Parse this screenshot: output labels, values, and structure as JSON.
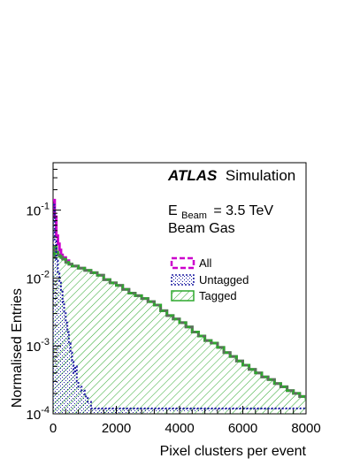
{
  "chart_data": {
    "type": "histogram",
    "xlabel": "Pixel clusters per event",
    "ylabel": "Normalised Entries",
    "xlim": [
      0,
      8000
    ],
    "ylim": [
      0.0001,
      0.5
    ],
    "yscale": "log",
    "x_ticks": [
      {
        "value": 0,
        "label": "0"
      },
      {
        "value": 2000,
        "label": "2000"
      },
      {
        "value": 4000,
        "label": "4000"
      },
      {
        "value": 6000,
        "label": "6000"
      },
      {
        "value": 8000,
        "label": "8000"
      }
    ],
    "y_ticks": [
      {
        "exp": -4,
        "base": "10",
        "sup": "-4"
      },
      {
        "exp": -3,
        "base": "10",
        "sup": "-3"
      },
      {
        "exp": -2,
        "base": "10",
        "sup": "-2"
      },
      {
        "exp": -1,
        "base": "10",
        "sup": "-1"
      }
    ],
    "annotations": {
      "brand": "ATLAS",
      "brand_suffix": "Simulation",
      "energy_prefix": "E",
      "energy_subscript": "Beam",
      "energy_value": "= 3.5 TeV",
      "sample": "Beam Gas"
    },
    "legend": {
      "placement": "right-middle",
      "entries": [
        {
          "label": "All",
          "color": "#cc00cc",
          "style": "dashed"
        },
        {
          "label": "Untagged",
          "color": "#1a1aa0",
          "style": "dotted-hatched"
        },
        {
          "label": "Tagged",
          "color": "#2ea82e",
          "style": "hatched"
        }
      ]
    },
    "series": [
      {
        "name": "All",
        "color": "#cc00cc",
        "x": [
          0,
          50,
          100,
          150,
          200,
          250,
          300,
          400,
          500,
          600,
          800,
          1000,
          1200,
          1400,
          1600,
          1800,
          2000,
          2200,
          2400,
          2600,
          2800,
          3000,
          3200,
          3400,
          3600,
          3800,
          4000,
          4200,
          4400,
          4600,
          4800,
          5000,
          5200,
          5400,
          5600,
          5800,
          6000,
          6200,
          6400,
          6600,
          6800,
          7000,
          7200,
          7400,
          7600,
          7800,
          8000
        ],
        "y": [
          0.14,
          0.08,
          0.042,
          0.032,
          0.026,
          0.022,
          0.02,
          0.018,
          0.016,
          0.015,
          0.014,
          0.013,
          0.012,
          0.011,
          0.0095,
          0.0085,
          0.0078,
          0.0068,
          0.006,
          0.0055,
          0.005,
          0.0045,
          0.004,
          0.0033,
          0.0028,
          0.0025,
          0.0022,
          0.0019,
          0.0016,
          0.0014,
          0.0012,
          0.0011,
          0.00095,
          0.0008,
          0.0007,
          0.0006,
          0.00052,
          0.00045,
          0.0004,
          0.00035,
          0.00032,
          0.00028,
          0.00025,
          0.00022,
          0.0002,
          0.00018,
          0.00016
        ]
      },
      {
        "name": "Untagged",
        "color": "#1a1aa0",
        "x": [
          0,
          50,
          100,
          150,
          200,
          250,
          300,
          350,
          400,
          450,
          500,
          550,
          600,
          650,
          700,
          750,
          800,
          900,
          1000,
          1100,
          1200
        ],
        "y": [
          0.12,
          0.035,
          0.018,
          0.012,
          0.009,
          0.0065,
          0.0045,
          0.0032,
          0.0022,
          0.0016,
          0.0011,
          0.0008,
          0.0006,
          0.0004,
          0.0005,
          0.0003,
          0.00025,
          0.00022,
          0.00018,
          0.00015,
          0.00012
        ]
      },
      {
        "name": "Tagged",
        "color": "#2ea82e",
        "x": [
          0,
          50,
          100,
          150,
          200,
          250,
          300,
          400,
          500,
          600,
          800,
          1000,
          1200,
          1400,
          1600,
          1800,
          2000,
          2200,
          2400,
          2600,
          2800,
          3000,
          3200,
          3400,
          3600,
          3800,
          4000,
          4200,
          4400,
          4600,
          4800,
          5000,
          5200,
          5400,
          5600,
          5800,
          6000,
          6200,
          6400,
          6600,
          6800,
          7000,
          7200,
          7400,
          7600,
          7800,
          8000
        ],
        "y": [
          0.02,
          0.028,
          0.024,
          0.022,
          0.021,
          0.02,
          0.019,
          0.017,
          0.016,
          0.015,
          0.014,
          0.013,
          0.012,
          0.011,
          0.0095,
          0.0085,
          0.0078,
          0.0068,
          0.006,
          0.0055,
          0.005,
          0.0045,
          0.004,
          0.0033,
          0.0028,
          0.0025,
          0.0022,
          0.0019,
          0.0016,
          0.0014,
          0.0012,
          0.0011,
          0.00095,
          0.0008,
          0.0007,
          0.0006,
          0.00052,
          0.00045,
          0.0004,
          0.00035,
          0.00032,
          0.00028,
          0.00025,
          0.00022,
          0.0002,
          0.00018,
          0.00016
        ]
      }
    ]
  }
}
